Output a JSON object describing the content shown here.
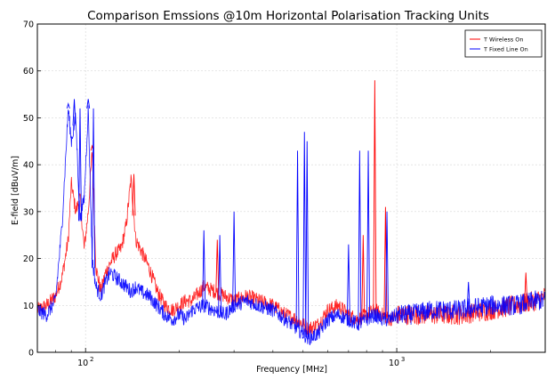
{
  "chart_data": {
    "type": "line",
    "title": "Comparison Emssions @10m Horizontal Polarisation Tracking Units",
    "xlabel": "Frequency [MHz]",
    "ylabel": "E-field [dBuV/m]",
    "x_scale": "log",
    "xlim": [
      70,
      3000
    ],
    "ylim": [
      0,
      70
    ],
    "y_ticks": [
      "0",
      "10",
      "20",
      "30",
      "40",
      "50",
      "60",
      "70"
    ],
    "x_ticks": [
      {
        "value": 100,
        "label": "10",
        "exp": "2"
      },
      {
        "value": 1000,
        "label": "10",
        "exp": "3"
      }
    ],
    "grid": true,
    "legend_position": "top-right",
    "series": [
      {
        "name": "T Wireless On",
        "color": "#ff0000",
        "x": [
          70,
          75,
          80,
          84,
          88,
          90,
          93,
          96,
          99,
          102,
          105,
          108,
          112,
          116,
          120,
          125,
          130,
          135,
          140,
          145,
          150,
          160,
          170,
          180,
          190,
          200,
          210,
          220,
          240,
          260,
          280,
          300,
          330,
          360,
          400,
          440,
          480,
          520,
          560,
          600,
          650,
          700,
          750,
          800,
          850,
          900,
          950,
          1000,
          1100,
          1300,
          1600,
          2000,
          2400,
          2800,
          3000
        ],
        "y": [
          9,
          10,
          12,
          16,
          24,
          36,
          30,
          33,
          22,
          30,
          43,
          18,
          13,
          17,
          19,
          21,
          22,
          27,
          37,
          24,
          22,
          18,
          13,
          10,
          9,
          10,
          11,
          11,
          14,
          13,
          12,
          11,
          12,
          11,
          10,
          8,
          7,
          5,
          6,
          9,
          10,
          8,
          7,
          8,
          9,
          8,
          7,
          8,
          8,
          8,
          8,
          9,
          10,
          11,
          12
        ]
      },
      {
        "name": "T Fixed Line On",
        "color": "#0000ff",
        "x": [
          70,
          75,
          80,
          84,
          88,
          90,
          93,
          96,
          99,
          102,
          105,
          108,
          112,
          116,
          120,
          125,
          130,
          135,
          140,
          145,
          150,
          160,
          170,
          180,
          190,
          200,
          210,
          220,
          240,
          260,
          280,
          300,
          330,
          360,
          400,
          440,
          480,
          520,
          560,
          600,
          650,
          700,
          750,
          800,
          850,
          900,
          950,
          1000,
          1100,
          1300,
          1600,
          2000,
          2400,
          2800,
          3000
        ],
        "y": [
          9,
          8,
          11,
          27,
          52,
          45,
          50,
          28,
          33,
          52,
          20,
          14,
          12,
          15,
          17,
          16,
          15,
          14,
          13,
          14,
          13,
          12,
          10,
          8,
          7,
          8,
          7,
          9,
          10,
          9,
          8,
          10,
          11,
          10,
          9,
          7,
          5,
          3,
          4,
          7,
          8,
          7,
          6,
          7,
          8,
          7,
          7,
          8,
          8,
          9,
          9,
          10,
          10,
          11,
          11
        ]
      }
    ],
    "spikes": [
      {
        "series": 0,
        "x": 850,
        "y": 58
      },
      {
        "series": 0,
        "x": 920,
        "y": 31
      },
      {
        "series": 0,
        "x": 780,
        "y": 25
      },
      {
        "series": 0,
        "x": 143,
        "y": 38
      },
      {
        "series": 0,
        "x": 105,
        "y": 44
      },
      {
        "series": 0,
        "x": 265,
        "y": 24
      },
      {
        "series": 0,
        "x": 2600,
        "y": 17
      },
      {
        "series": 1,
        "x": 92,
        "y": 54
      },
      {
        "series": 1,
        "x": 96,
        "y": 52
      },
      {
        "series": 1,
        "x": 102,
        "y": 54
      },
      {
        "series": 1,
        "x": 106,
        "y": 52
      },
      {
        "series": 1,
        "x": 88,
        "y": 53
      },
      {
        "series": 1,
        "x": 480,
        "y": 43
      },
      {
        "series": 1,
        "x": 505,
        "y": 47
      },
      {
        "series": 1,
        "x": 515,
        "y": 45
      },
      {
        "series": 1,
        "x": 760,
        "y": 43
      },
      {
        "series": 1,
        "x": 810,
        "y": 43
      },
      {
        "series": 1,
        "x": 700,
        "y": 23
      },
      {
        "series": 1,
        "x": 930,
        "y": 30
      },
      {
        "series": 1,
        "x": 270,
        "y": 25
      },
      {
        "series": 1,
        "x": 300,
        "y": 30
      },
      {
        "series": 1,
        "x": 240,
        "y": 26
      },
      {
        "series": 1,
        "x": 1700,
        "y": 15
      }
    ]
  }
}
